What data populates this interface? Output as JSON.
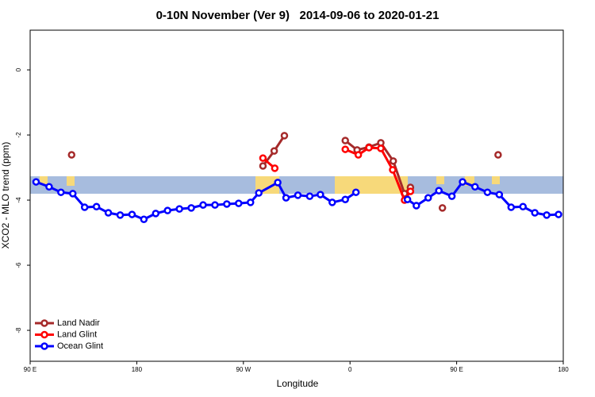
{
  "chart_data": {
    "type": "line",
    "title": "0-10N November (Ver 9)   2014-09-06 to 2020-01-21",
    "x_label": "Longitude",
    "y_label": "XCO2 - MLO trend (ppm)",
    "xlim": [
      90,
      540
    ],
    "ylim": [
      -8.95,
      1.22
    ],
    "xticks": [
      {
        "value": 90,
        "label": "90 E"
      },
      {
        "value": 180,
        "label": "180"
      },
      {
        "value": 270,
        "label": "90 W"
      },
      {
        "value": 360,
        "label": "0"
      },
      {
        "value": 450,
        "label": "90 E"
      },
      {
        "value": 540,
        "label": "180"
      }
    ],
    "yticks": [
      0,
      -2,
      -4,
      -6,
      -8
    ],
    "legend": "bottom-left",
    "series": [
      {
        "name": "Land Nadir",
        "color": "#a52a2a",
        "x": [
          125,
          null,
          286.5,
          296,
          304.6,
          null,
          356,
          366,
          376,
          386,
          396.5,
          406,
          411,
          null,
          438,
          null,
          485
        ],
        "values": [
          -2.61,
          null,
          -2.95,
          -2.49,
          -2.02,
          null,
          -2.17,
          -2.46,
          -2.37,
          -2.24,
          -2.8,
          -3.8,
          -3.61,
          null,
          -4.24,
          null,
          -2.61
        ]
      },
      {
        "name": "Land Glint",
        "color": "#ff0000",
        "x": [
          286.5,
          296.5,
          null,
          356,
          367,
          376,
          386,
          396,
          406,
          411
        ],
        "values": [
          -2.71,
          -3.02,
          null,
          -2.44,
          -2.61,
          -2.39,
          -2.41,
          -3.07,
          -4.0,
          -3.73
        ]
      },
      {
        "name": "Ocean Glint",
        "color": "#0000ff",
        "x": [
          95,
          106,
          116,
          126,
          136,
          146,
          156,
          166,
          176,
          186,
          196,
          206,
          216,
          226,
          236,
          246,
          256,
          266,
          276,
          283,
          299,
          306,
          316,
          326,
          335,
          345,
          356,
          365,
          null,
          408.5,
          416,
          426,
          435,
          446,
          455,
          465.5,
          476,
          486,
          496,
          506,
          516,
          526,
          536
        ],
        "values": [
          -3.44,
          -3.59,
          -3.76,
          -3.8,
          -4.22,
          -4.2,
          -4.39,
          -4.46,
          -4.44,
          -4.59,
          -4.41,
          -4.32,
          -4.27,
          -4.24,
          -4.15,
          -4.15,
          -4.12,
          -4.1,
          -4.07,
          -3.78,
          -3.46,
          -3.93,
          -3.85,
          -3.88,
          -3.83,
          -4.07,
          -3.98,
          -3.76,
          null,
          -3.98,
          -4.17,
          -3.93,
          -3.71,
          -3.88,
          -3.44,
          -3.59,
          -3.76,
          -3.83,
          -4.22,
          -4.2,
          -4.39,
          -4.46,
          -4.44
        ]
      }
    ]
  }
}
